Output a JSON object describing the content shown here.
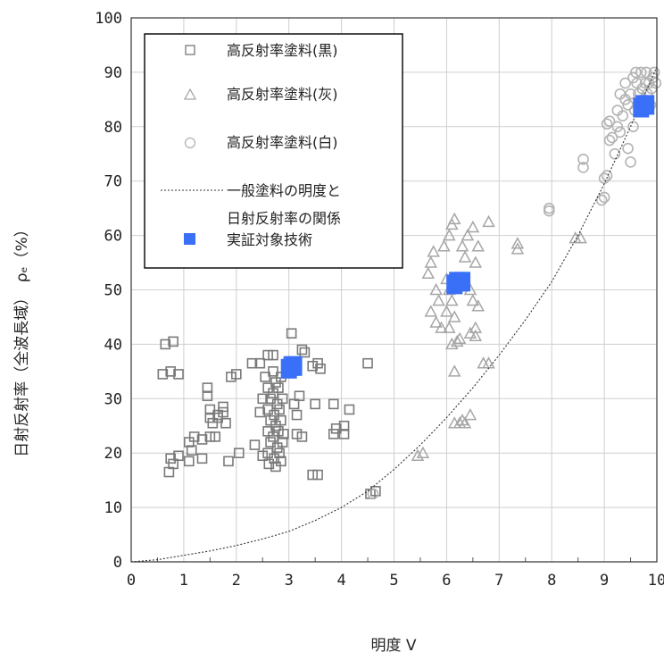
{
  "chart_data": {
    "type": "scatter",
    "title": "",
    "xlabel": "明度 V",
    "ylabel": "日射反射率（全波長域）　ρₑ（%）",
    "xlim": [
      0,
      10
    ],
    "ylim": [
      0,
      100
    ],
    "xticks": [
      "0",
      "1",
      "2",
      "3",
      "4",
      "5",
      "6",
      "7",
      "8",
      "9",
      "10"
    ],
    "yticks": [
      "0",
      "10",
      "20",
      "30",
      "40",
      "50",
      "60",
      "70",
      "80",
      "90",
      "100"
    ],
    "grid": true,
    "legend_position": "top-left",
    "legend": [
      {
        "label": "高反射率塗料(黒)",
        "marker": "square"
      },
      {
        "label": "高反射率塗料(灰)",
        "marker": "triangle"
      },
      {
        "label": "高反射率塗料(白)",
        "marker": "circle"
      },
      {
        "label_line1": "一般塗料の明度と",
        "label_line2": "日射反射率の関係",
        "marker": "dotted-line"
      },
      {
        "label": "実証対象技術",
        "marker": "filled-square"
      }
    ],
    "colors": {
      "black_series": "#7a7a7a",
      "gray_series": "#a6a6a6",
      "white_series": "#b3b3b3",
      "target": "#3a6ff7",
      "curve": "#333333"
    },
    "series": [
      {
        "name": "高反射率塗料(黒)",
        "points": [
          [
            0.65,
            40
          ],
          [
            0.8,
            40.5
          ],
          [
            0.6,
            34.5
          ],
          [
            0.75,
            35
          ],
          [
            0.9,
            34.5
          ],
          [
            0.75,
            19
          ],
          [
            0.8,
            18
          ],
          [
            0.72,
            16.5
          ],
          [
            0.9,
            19.5
          ],
          [
            1.1,
            22
          ],
          [
            1.15,
            20.5
          ],
          [
            1.2,
            23
          ],
          [
            1.1,
            18.5
          ],
          [
            1.35,
            19
          ],
          [
            1.35,
            22.5
          ],
          [
            1.5,
            23
          ],
          [
            1.6,
            23
          ],
          [
            1.45,
            32
          ],
          [
            1.45,
            30.5
          ],
          [
            1.5,
            28
          ],
          [
            1.5,
            26.5
          ],
          [
            1.55,
            25.5
          ],
          [
            1.65,
            27
          ],
          [
            1.65,
            26.5
          ],
          [
            1.75,
            28.5
          ],
          [
            1.75,
            27.5
          ],
          [
            1.8,
            25.5
          ],
          [
            1.9,
            34
          ],
          [
            2.0,
            34.5
          ],
          [
            1.85,
            18.5
          ],
          [
            2.05,
            20
          ],
          [
            2.3,
            36.5
          ],
          [
            2.45,
            36.5
          ],
          [
            2.35,
            21.5
          ],
          [
            2.5,
            19.5
          ],
          [
            2.45,
            27.5
          ],
          [
            2.5,
            30
          ],
          [
            2.6,
            38
          ],
          [
            2.7,
            38
          ],
          [
            2.55,
            34
          ],
          [
            2.6,
            32
          ],
          [
            2.65,
            30
          ],
          [
            2.6,
            28
          ],
          [
            2.65,
            26
          ],
          [
            2.6,
            24
          ],
          [
            2.65,
            22
          ],
          [
            2.6,
            20
          ],
          [
            2.62,
            18
          ],
          [
            2.7,
            35
          ],
          [
            2.75,
            33
          ],
          [
            2.7,
            31
          ],
          [
            2.78,
            29
          ],
          [
            2.72,
            27
          ],
          [
            2.75,
            25
          ],
          [
            2.7,
            23
          ],
          [
            2.78,
            21
          ],
          [
            2.72,
            19
          ],
          [
            2.75,
            17.5
          ],
          [
            2.85,
            34
          ],
          [
            2.8,
            32
          ],
          [
            2.88,
            30
          ],
          [
            2.82,
            28
          ],
          [
            2.85,
            26
          ],
          [
            2.8,
            24
          ],
          [
            2.88,
            22
          ],
          [
            2.82,
            20
          ],
          [
            2.85,
            18.5
          ],
          [
            2.9,
            23.5
          ],
          [
            3.05,
            42
          ],
          [
            3.25,
            39
          ],
          [
            3.3,
            38.5
          ],
          [
            3.1,
            29
          ],
          [
            3.2,
            30.5
          ],
          [
            3.15,
            27
          ],
          [
            3.25,
            23
          ],
          [
            3.15,
            23.5
          ],
          [
            3.45,
            36
          ],
          [
            3.55,
            36.5
          ],
          [
            3.6,
            35.5
          ],
          [
            3.45,
            16
          ],
          [
            3.55,
            16
          ],
          [
            3.5,
            29
          ],
          [
            3.85,
            29
          ],
          [
            3.9,
            24.5
          ],
          [
            3.85,
            23.5
          ],
          [
            4.05,
            25
          ],
          [
            4.05,
            23.5
          ],
          [
            4.15,
            28
          ],
          [
            4.5,
            36.5
          ],
          [
            4.55,
            12.5
          ],
          [
            4.65,
            13
          ]
        ]
      },
      {
        "name": "高反射率塗料(灰)",
        "points": [
          [
            5.45,
            19.5
          ],
          [
            5.55,
            20
          ],
          [
            5.65,
            53
          ],
          [
            5.7,
            55
          ],
          [
            5.75,
            57
          ],
          [
            5.8,
            50
          ],
          [
            5.85,
            48
          ],
          [
            5.7,
            46
          ],
          [
            5.8,
            44
          ],
          [
            5.9,
            43
          ],
          [
            5.95,
            58
          ],
          [
            6.05,
            60
          ],
          [
            6.1,
            62
          ],
          [
            6.15,
            63
          ],
          [
            6.0,
            52
          ],
          [
            6.05,
            50
          ],
          [
            6.1,
            48
          ],
          [
            6.0,
            46
          ],
          [
            6.15,
            45
          ],
          [
            6.05,
            43
          ],
          [
            6.1,
            40
          ],
          [
            6.15,
            35
          ],
          [
            6.2,
            40.5
          ],
          [
            6.25,
            41
          ],
          [
            6.15,
            25.5
          ],
          [
            6.25,
            25.5
          ],
          [
            6.3,
            26
          ],
          [
            6.35,
            25.5
          ],
          [
            6.45,
            27
          ],
          [
            6.3,
            58
          ],
          [
            6.35,
            56
          ],
          [
            6.4,
            60
          ],
          [
            6.5,
            61.5
          ],
          [
            6.6,
            58
          ],
          [
            6.55,
            55
          ],
          [
            6.45,
            50
          ],
          [
            6.5,
            48
          ],
          [
            6.6,
            47
          ],
          [
            6.55,
            43
          ],
          [
            6.45,
            42
          ],
          [
            6.55,
            41.5
          ],
          [
            6.7,
            36.5
          ],
          [
            6.8,
            36.5
          ],
          [
            6.8,
            62.5
          ],
          [
            7.35,
            58.5
          ],
          [
            7.35,
            57.5
          ],
          [
            8.45,
            59.5
          ],
          [
            8.55,
            59.5
          ]
        ]
      },
      {
        "name": "高反射率塗料(白)",
        "points": [
          [
            4.6,
            12.5
          ],
          [
            7.95,
            64.5
          ],
          [
            7.95,
            65
          ],
          [
            8.6,
            74
          ],
          [
            8.6,
            72.5
          ],
          [
            8.95,
            66.5
          ],
          [
            9.0,
            67
          ],
          [
            9.0,
            70.5
          ],
          [
            9.05,
            71
          ],
          [
            9.05,
            80.5
          ],
          [
            9.1,
            81
          ],
          [
            9.1,
            77.5
          ],
          [
            9.15,
            78
          ],
          [
            9.2,
            75
          ],
          [
            9.25,
            80
          ],
          [
            9.25,
            83
          ],
          [
            9.3,
            86
          ],
          [
            9.3,
            79
          ],
          [
            9.35,
            82
          ],
          [
            9.4,
            88
          ],
          [
            9.4,
            85
          ],
          [
            9.45,
            84
          ],
          [
            9.45,
            76
          ],
          [
            9.5,
            73.5
          ],
          [
            9.5,
            86
          ],
          [
            9.55,
            89
          ],
          [
            9.55,
            80
          ],
          [
            9.58,
            83
          ],
          [
            9.6,
            90
          ],
          [
            9.62,
            88
          ],
          [
            9.65,
            86
          ],
          [
            9.68,
            84
          ],
          [
            9.7,
            90
          ],
          [
            9.72,
            87
          ],
          [
            9.75,
            85
          ],
          [
            9.78,
            88
          ],
          [
            9.8,
            90
          ],
          [
            9.82,
            86
          ],
          [
            9.85,
            88
          ],
          [
            9.88,
            84
          ],
          [
            9.9,
            87
          ],
          [
            9.92,
            89
          ],
          [
            9.95,
            90
          ],
          [
            9.98,
            88
          ]
        ]
      },
      {
        "name": "実証対象技術",
        "points": [
          [
            3.0,
            35.5
          ],
          [
            3.05,
            36
          ],
          [
            3.1,
            36
          ],
          [
            6.15,
            51
          ],
          [
            6.2,
            51.5
          ],
          [
            6.3,
            51.5
          ],
          [
            9.7,
            83.5
          ],
          [
            9.75,
            84
          ],
          [
            9.8,
            84
          ]
        ]
      },
      {
        "name": "一般塗料の明度と日射反射率の関係",
        "curve": [
          [
            0,
            0
          ],
          [
            0.5,
            0.4
          ],
          [
            1,
            1.2
          ],
          [
            1.5,
            2.0
          ],
          [
            2,
            3.0
          ],
          [
            2.5,
            4.2
          ],
          [
            3,
            5.6
          ],
          [
            3.5,
            7.6
          ],
          [
            4,
            10
          ],
          [
            4.5,
            13
          ],
          [
            5,
            17
          ],
          [
            5.5,
            21.5
          ],
          [
            6,
            26.5
          ],
          [
            6.5,
            32
          ],
          [
            7,
            38
          ],
          [
            7.5,
            44.5
          ],
          [
            8,
            51.5
          ],
          [
            8.5,
            60
          ],
          [
            9,
            69.5
          ],
          [
            9.5,
            80
          ],
          [
            10,
            91
          ]
        ]
      }
    ]
  }
}
